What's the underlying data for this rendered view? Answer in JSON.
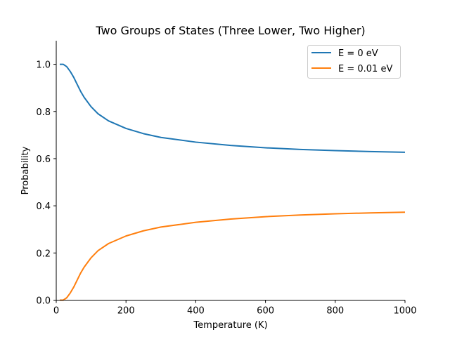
{
  "chart_data": {
    "type": "line",
    "title": "Two Groups of States (Three Lower, Two Higher)",
    "xlabel": "Temperature (K)",
    "ylabel": "Probability",
    "xlim": [
      0,
      1000
    ],
    "ylim": [
      0,
      1.1
    ],
    "xticks": [
      0,
      200,
      400,
      600,
      800,
      1000
    ],
    "yticks": [
      0.0,
      0.2,
      0.4,
      0.6,
      0.8,
      1.0
    ],
    "xtick_labels": [
      "0",
      "200",
      "400",
      "600",
      "800",
      "1000"
    ],
    "ytick_labels": [
      "0.0",
      "0.2",
      "0.4",
      "0.6",
      "0.8",
      "1.0"
    ],
    "grid": false,
    "legend_position": "top-right",
    "series": [
      {
        "name": "E = 0 eV",
        "color": "#1f77b4",
        "x": [
          10,
          20,
          30,
          40,
          50,
          60,
          70,
          80,
          100,
          120,
          150,
          200,
          250,
          300,
          400,
          500,
          600,
          700,
          800,
          900,
          1000
        ],
        "y": [
          1.0,
          1.0,
          0.99,
          0.97,
          0.945,
          0.915,
          0.885,
          0.86,
          0.82,
          0.79,
          0.76,
          0.728,
          0.706,
          0.69,
          0.67,
          0.656,
          0.646,
          0.639,
          0.634,
          0.63,
          0.627
        ]
      },
      {
        "name": "E = 0.01 eV",
        "color": "#ff7f0e",
        "x": [
          10,
          20,
          30,
          40,
          50,
          60,
          70,
          80,
          100,
          120,
          150,
          200,
          250,
          300,
          400,
          500,
          600,
          700,
          800,
          900,
          1000
        ],
        "y": [
          0.0,
          0.0,
          0.01,
          0.03,
          0.055,
          0.085,
          0.115,
          0.14,
          0.18,
          0.21,
          0.24,
          0.272,
          0.294,
          0.31,
          0.33,
          0.344,
          0.354,
          0.361,
          0.366,
          0.37,
          0.373
        ]
      }
    ]
  }
}
